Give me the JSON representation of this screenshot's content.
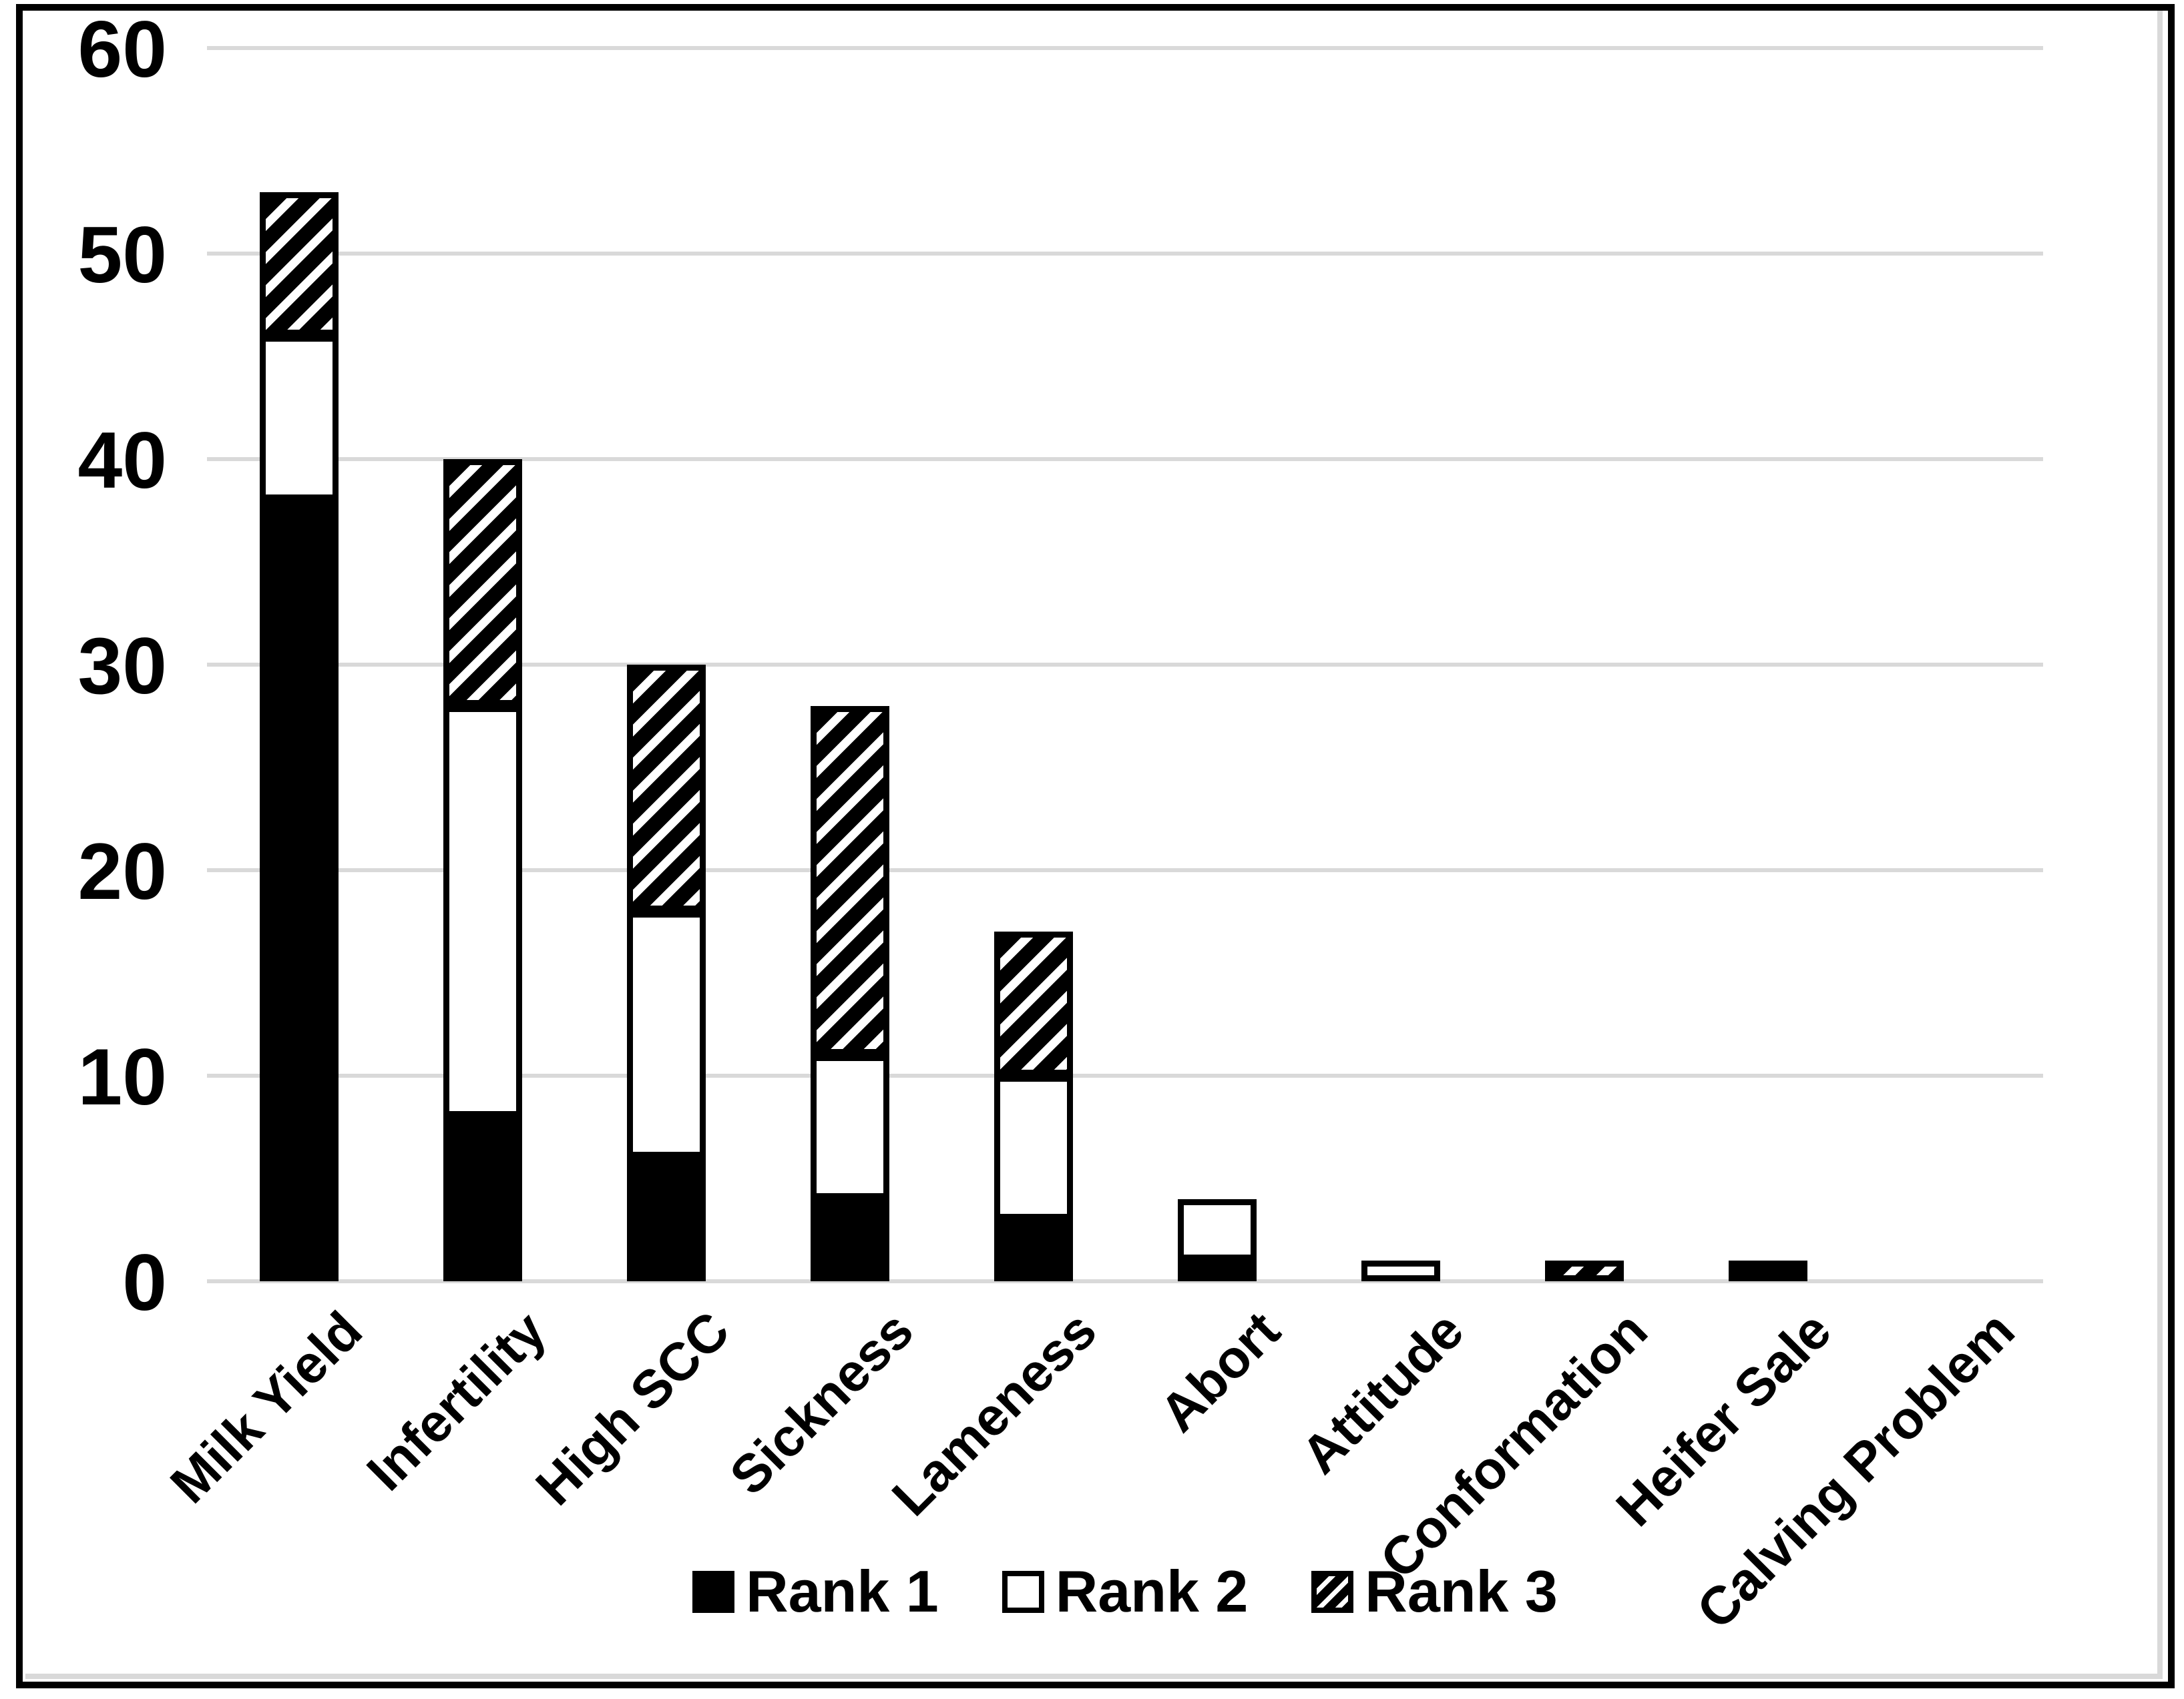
{
  "chart_data": {
    "type": "bar",
    "stacked": true,
    "title": "",
    "xlabel": "",
    "ylabel": "",
    "categories": [
      "Milk Yield",
      "Infertility",
      "High SCC",
      "Sickness",
      "Lameness",
      "Abort",
      "Attitude",
      "Conformation",
      "Heifer Sale",
      "Calving Problem"
    ],
    "series": [
      {
        "name": "Rank 1",
        "pattern": "solid-black",
        "values": [
          38,
          8,
          6,
          4,
          3,
          1,
          0,
          0,
          1,
          0
        ]
      },
      {
        "name": "Rank 2",
        "pattern": "white-outlined",
        "values": [
          8,
          20,
          12,
          7,
          7,
          3,
          1,
          0,
          0,
          0
        ]
      },
      {
        "name": "Rank 3",
        "pattern": "diagonal-hatch",
        "values": [
          7,
          12,
          12,
          17,
          7,
          0,
          0,
          1,
          0,
          0
        ]
      }
    ],
    "ylim": [
      0,
      60
    ],
    "yticks": [
      0,
      10,
      20,
      30,
      40,
      50,
      60
    ],
    "grid": "horizontal",
    "legend_position": "bottom-center",
    "colors": {
      "gridline": "#d9d9d9",
      "bar_fill": "#000000",
      "bar_outline": "#000000",
      "background": "#ffffff",
      "frame": "#000000"
    }
  },
  "legend": {
    "items": [
      {
        "label": "Rank 1",
        "swatch": "solid-black"
      },
      {
        "label": "Rank 2",
        "swatch": "white-outlined"
      },
      {
        "label": "Rank 3",
        "swatch": "diagonal-hatch"
      }
    ]
  }
}
